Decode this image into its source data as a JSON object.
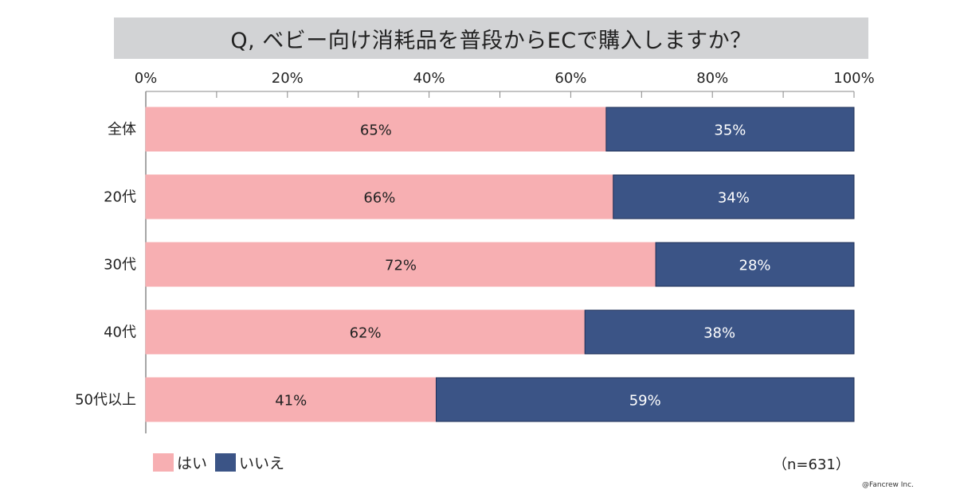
{
  "chart_data": {
    "type": "bar",
    "orientation": "horizontal",
    "stacked": true,
    "title": "Q, ベビー向け消耗品を普段からECで購入しますか？",
    "categories": [
      "全体",
      "20代",
      "30代",
      "40代",
      "50代以上"
    ],
    "x_ticks": [
      "0%",
      "20%",
      "40%",
      "60%",
      "80%",
      "100%"
    ],
    "xlim": [
      0,
      100
    ],
    "series": [
      {
        "name": "はい",
        "color": "#f7afb2",
        "values": [
          65,
          66,
          72,
          62,
          41
        ],
        "labels": [
          "65%",
          "66%",
          "72%",
          "62%",
          "41%"
        ]
      },
      {
        "name": "いいえ",
        "color": "#3b5486",
        "values": [
          35,
          34,
          28,
          38,
          59
        ],
        "labels": [
          "35%",
          "34%",
          "28%",
          "38%",
          "59%"
        ]
      }
    ],
    "legend_placement": "bottom-left",
    "grid": false
  },
  "sample_size": "（n=631）",
  "credit": "@Fancrew Inc."
}
